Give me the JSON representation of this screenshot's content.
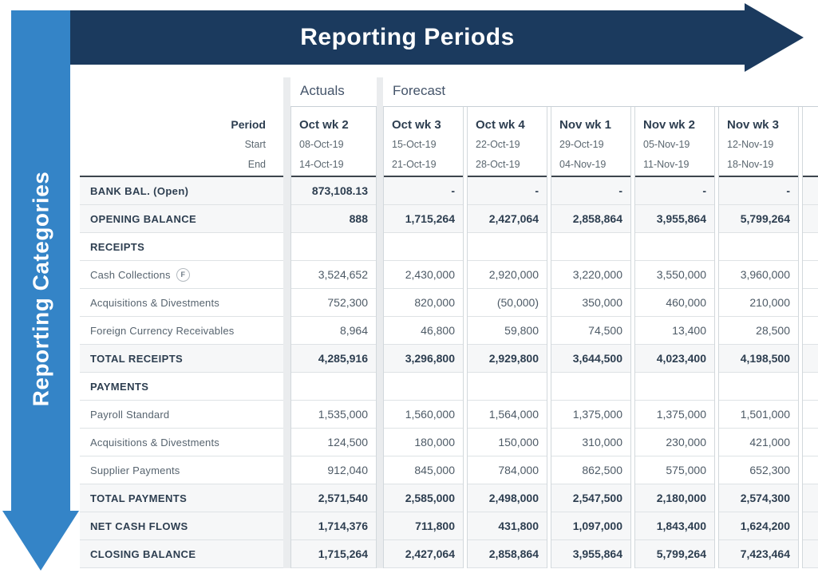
{
  "colors": {
    "banner_navy": "#1b3a5e",
    "arrow_blue": "#3484c7"
  },
  "banner": {
    "title": "Reporting Periods"
  },
  "side": {
    "title": "Reporting Categories"
  },
  "table": {
    "corner": {
      "period": "Period",
      "start": "Start",
      "end": "End"
    },
    "groups": [
      {
        "label": "Actuals",
        "columns": [
          {
            "name": "Oct wk 2",
            "start": "08-Oct-19",
            "end": "14-Oct-19"
          }
        ]
      },
      {
        "label": "Forecast",
        "columns": [
          {
            "name": "Oct wk 3",
            "start": "15-Oct-19",
            "end": "21-Oct-19"
          },
          {
            "name": "Oct wk 4",
            "start": "22-Oct-19",
            "end": "28-Oct-19"
          },
          {
            "name": "Nov wk 1",
            "start": "29-Oct-19",
            "end": "04-Nov-19"
          },
          {
            "name": "Nov wk 2",
            "start": "05-Nov-19",
            "end": "11-Nov-19"
          },
          {
            "name": "Nov wk 3",
            "start": "12-Nov-19",
            "end": "18-Nov-19"
          },
          {
            "name": "",
            "start": "",
            "end": ""
          }
        ]
      }
    ],
    "rows": [
      {
        "label": "BANK BAL. (Open)",
        "type": "summary",
        "values": [
          "873,108.13",
          "-",
          "-",
          "-",
          "-",
          "-",
          ""
        ]
      },
      {
        "label": "OPENING BALANCE",
        "type": "summary",
        "values": [
          "888",
          "1,715,264",
          "2,427,064",
          "2,858,864",
          "3,955,864",
          "5,799,264",
          ""
        ]
      },
      {
        "label": "RECEIPTS",
        "type": "section",
        "values": [
          "",
          "",
          "",
          "",
          "",
          "",
          ""
        ]
      },
      {
        "label": "Cash Collections",
        "type": "detail",
        "badge": "F",
        "values": [
          "3,524,652",
          "2,430,000",
          "2,920,000",
          "3,220,000",
          "3,550,000",
          "3,960,000",
          ""
        ]
      },
      {
        "label": "Acquisitions & Divestments",
        "type": "detail",
        "values": [
          "752,300",
          "820,000",
          "(50,000)",
          "350,000",
          "460,000",
          "210,000",
          ""
        ]
      },
      {
        "label": "Foreign Currency Receivables",
        "type": "detail",
        "values": [
          "8,964",
          "46,800",
          "59,800",
          "74,500",
          "13,400",
          "28,500",
          ""
        ]
      },
      {
        "label": "TOTAL RECEIPTS",
        "type": "summary",
        "values": [
          "4,285,916",
          "3,296,800",
          "2,929,800",
          "3,644,500",
          "4,023,400",
          "4,198,500",
          ""
        ]
      },
      {
        "label": "PAYMENTS",
        "type": "section",
        "values": [
          "",
          "",
          "",
          "",
          "",
          "",
          ""
        ]
      },
      {
        "label": "Payroll Standard",
        "type": "detail",
        "values": [
          "1,535,000",
          "1,560,000",
          "1,564,000",
          "1,375,000",
          "1,375,000",
          "1,501,000",
          ""
        ]
      },
      {
        "label": "Acquisitions & Divestments",
        "type": "detail",
        "values": [
          "124,500",
          "180,000",
          "150,000",
          "310,000",
          "230,000",
          "421,000",
          ""
        ]
      },
      {
        "label": "Supplier Payments",
        "type": "detail",
        "values": [
          "912,040",
          "845,000",
          "784,000",
          "862,500",
          "575,000",
          "652,300",
          ""
        ]
      },
      {
        "label": "TOTAL PAYMENTS",
        "type": "summary",
        "values": [
          "2,571,540",
          "2,585,000",
          "2,498,000",
          "2,547,500",
          "2,180,000",
          "2,574,300",
          ""
        ]
      },
      {
        "label": "NET CASH FLOWS",
        "type": "summary",
        "values": [
          "1,714,376",
          "711,800",
          "431,800",
          "1,097,000",
          "1,843,400",
          "1,624,200",
          ""
        ]
      },
      {
        "label": "CLOSING BALANCE",
        "type": "summary",
        "values": [
          "1,715,264",
          "2,427,064",
          "2,858,864",
          "3,955,864",
          "5,799,264",
          "7,423,464",
          ""
        ]
      }
    ]
  }
}
